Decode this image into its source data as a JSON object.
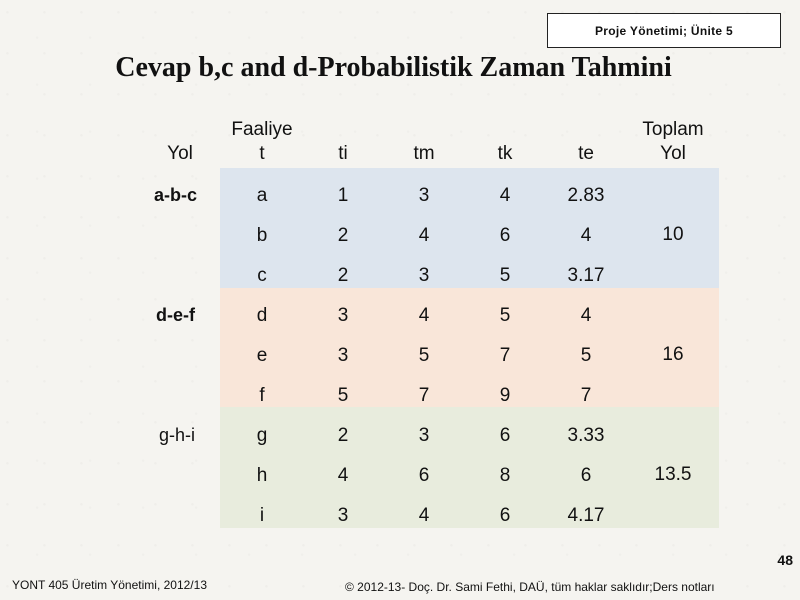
{
  "header": {
    "unit_label": "Proje Yönetimi; Ünite 5"
  },
  "title": "Cevap b,c and d-Probabilistik Zaman Tahmini",
  "table": {
    "headers": {
      "yol": "Yol",
      "faaliyet_line1": "Faaliye",
      "faaliyet_line2": "t",
      "ti": "ti",
      "tm": "tm",
      "tk": "tk",
      "te": "te",
      "toplam_line1": "Toplam",
      "toplam_line2": "Yol"
    },
    "groups": [
      {
        "path": "a-b-c",
        "total": "10",
        "rows": [
          {
            "faaliyet": "a",
            "ti": "1",
            "tm": "3",
            "tk": "4",
            "te": "2.83"
          },
          {
            "faaliyet": "b",
            "ti": "2",
            "tm": "4",
            "tk": "6",
            "te": "4"
          },
          {
            "faaliyet": "c",
            "ti": "2",
            "tm": "3",
            "tk": "5",
            "te": "3.17"
          }
        ]
      },
      {
        "path": "d-e-f",
        "total": "16",
        "rows": [
          {
            "faaliyet": "d",
            "ti": "3",
            "tm": "4",
            "tk": "5",
            "te": "4"
          },
          {
            "faaliyet": "e",
            "ti": "3",
            "tm": "5",
            "tk": "7",
            "te": "5"
          },
          {
            "faaliyet": "f",
            "ti": "5",
            "tm": "7",
            "tk": "9",
            "te": "7"
          }
        ]
      },
      {
        "path": "g-h-i",
        "total": "13.5",
        "rows": [
          {
            "faaliyet": "g",
            "ti": "2",
            "tm": "3",
            "tk": "6",
            "te": "3.33"
          },
          {
            "faaliyet": "h",
            "ti": "4",
            "tm": "6",
            "tk": "8",
            "te": "6"
          },
          {
            "faaliyet": "i",
            "ti": "3",
            "tm": "4",
            "tk": "6",
            "te": "4.17"
          }
        ]
      }
    ]
  },
  "page_number": "48",
  "footer": {
    "left": "YONT 405 Üretim Yönetimi, 2012/13",
    "right": "© 2012-13- Doç. Dr. Sami Fethi, DAÜ, tüm haklar saklıdır;Ders notları"
  }
}
